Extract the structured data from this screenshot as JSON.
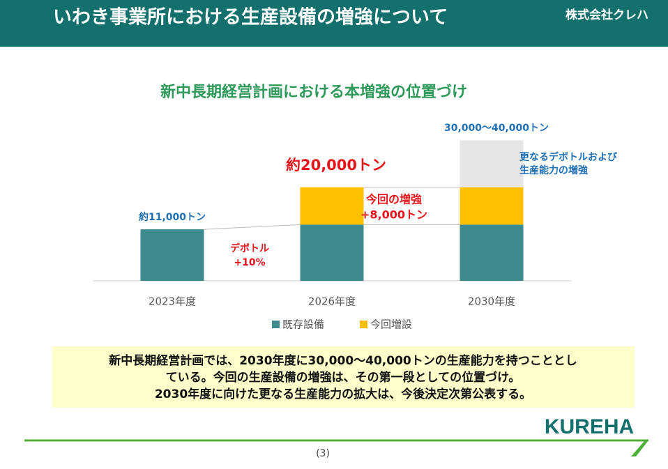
{
  "header": {
    "title": "いわき事業所における生産設備の増強について",
    "company": "株式会社クレハ"
  },
  "chart_data": {
    "type": "stacked_bar",
    "title": "新中長期経営計画における本増強の位置づけ",
    "categories": [
      "2023年度",
      "2026年度",
      "2030年度"
    ],
    "series": [
      {
        "name": "既存設備",
        "color": "#3d8a8f",
        "values": [
          11000,
          12000,
          12000
        ]
      },
      {
        "name": "今回増設",
        "color": "#ffc000",
        "values": [
          null,
          8000,
          8000
        ]
      },
      {
        "color": "#e6e6e6",
        "values": [
          null,
          null,
          10000
        ]
      }
    ],
    "ylim": [
      0,
      32000
    ],
    "annotations": [
      {
        "lines": [
          "約11,000トン"
        ],
        "color": "#1f6fb5"
      },
      {
        "lines": [
          "約20,000トン"
        ],
        "color": "#e8141b"
      },
      {
        "lines": [
          "30,000～40,000トン"
        ],
        "color": "#1f6fb5"
      },
      {
        "lines": [
          "更なるデボトルおよび",
          "生産能力の増強"
        ],
        "color": "#1f6fb5"
      },
      {
        "lines": [
          "今回の増強",
          "+8,000トン"
        ],
        "color": "#e8141b"
      },
      {
        "lines": [
          "デボトル",
          "+10%"
        ],
        "color": "#e8141b"
      }
    ]
  },
  "note": {
    "lines": [
      "新中長期経営計画では、2030年度に30,000～40,000トンの生産能力を持つこととし",
      "ている。今回の生産設備の増強は、その第一段としての位置づけ。",
      "2030年度に向けた更なる生産能力の拡大は、今後決定次第公表する。"
    ]
  },
  "footer": {
    "page": "(3)",
    "logo": "KUREHA"
  }
}
